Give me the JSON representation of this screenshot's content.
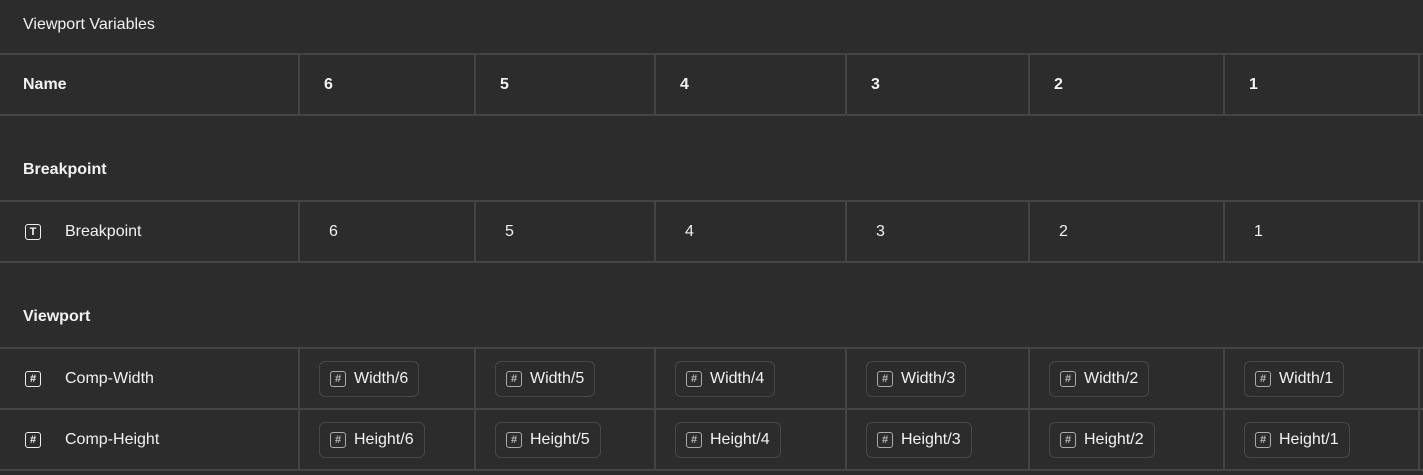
{
  "title": "Viewport Variables",
  "header": {
    "name": "Name",
    "columns": [
      "6",
      "5",
      "4",
      "3",
      "2",
      "1"
    ]
  },
  "sections": [
    {
      "label": "Breakpoint",
      "rows": [
        {
          "icon": "text-icon",
          "icon_glyph": "T",
          "name": "Breakpoint",
          "values": [
            "6",
            "5",
            "4",
            "3",
            "2",
            "1"
          ]
        }
      ]
    },
    {
      "label": "Viewport",
      "rows": [
        {
          "icon": "number-icon",
          "icon_glyph": "#",
          "name": "Comp-Width",
          "values": [
            "Width/6",
            "Width/5",
            "Width/4",
            "Width/3",
            "Width/2",
            "Width/1"
          ]
        },
        {
          "icon": "number-icon",
          "icon_glyph": "#",
          "name": "Comp-Height",
          "values": [
            "Height/6",
            "Height/5",
            "Height/4",
            "Height/3",
            "Height/2",
            "Height/1"
          ]
        }
      ]
    }
  ]
}
